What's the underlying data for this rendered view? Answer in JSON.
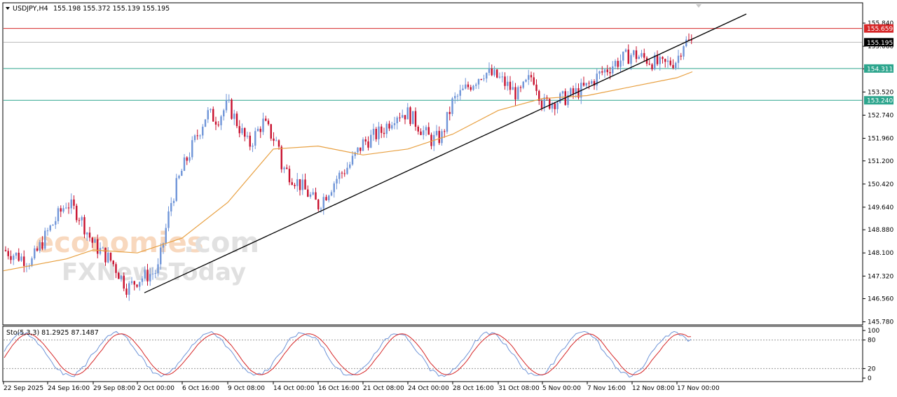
{
  "header": {
    "symbol": "USDJPY,H4",
    "ohlc": "155.198 155.372 155.139 155.195"
  },
  "indicator": {
    "label": "Sto(5,3,3) 81.2925 87.1487",
    "levels": [
      "100",
      "80",
      "20",
      "0"
    ]
  },
  "watermark": {
    "line1": "economies",
    "line1b": ".com",
    "line2": "FXNewsToday"
  },
  "colors": {
    "bull": "#6f95d8",
    "bear": "#c8102e",
    "ma": "#e8a041",
    "resistance": "#d62728",
    "support": "#2ca58d",
    "trendline": "#000000",
    "stoch_main": "#6f95d8",
    "stoch_signal": "#d62728"
  },
  "chart_data": {
    "type": "candlestick",
    "timeframe": "H4",
    "y_ticks": [
      "155.840",
      "155.060",
      "154.300",
      "153.520",
      "152.740",
      "151.960",
      "151.200",
      "150.420",
      "149.640",
      "148.880",
      "148.100",
      "147.320",
      "146.560",
      "145.780"
    ],
    "x_ticks": [
      "22 Sep 2025",
      "24 Sep 16:00",
      "29 Sep 08:00",
      "2 Oct 00:00",
      "6 Oct 16:00",
      "9 Oct 08:00",
      "14 Oct 00:00",
      "16 Oct 16:00",
      "21 Oct 08:00",
      "24 Oct 00:00",
      "28 Oct 16:00",
      "31 Oct 08:00",
      "5 Nov 00:00",
      "7 Nov 16:00",
      "12 Nov 08:00",
      "17 Nov 00:00"
    ],
    "ylim": [
      145.7,
      156.5
    ],
    "current_price": "155.195",
    "horizontal_levels": [
      {
        "value": 155.659,
        "label": "155.659",
        "color": "#d62728"
      },
      {
        "value": 154.311,
        "label": "154.311",
        "color": "#2ca58d"
      },
      {
        "value": 153.24,
        "label": "153.240",
        "color": "#2ca58d"
      }
    ],
    "trendline": {
      "start": {
        "x": "2 Oct 00:00",
        "y": 146.6
      },
      "end": {
        "x": "18 Nov 04:00",
        "y": 155.3
      }
    },
    "close_path": [
      [
        "22 Sep 2025",
        148.2
      ],
      [
        "24 Sep 00:00",
        147.8
      ],
      [
        "24 Sep 16:00",
        148.8
      ],
      [
        "25 Sep 20:00",
        149.8
      ],
      [
        "26 Sep 20:00",
        149.4
      ],
      [
        "29 Sep 08:00",
        148.4
      ],
      [
        "30 Sep 12:00",
        147.8
      ],
      [
        "1 Oct 04:00",
        146.9
      ],
      [
        "2 Oct 00:00",
        147.2
      ],
      [
        "3 Oct 00:00",
        147.5
      ],
      [
        "6 Oct 00:00",
        149.9
      ],
      [
        "6 Oct 16:00",
        150.9
      ],
      [
        "7 Oct 12:00",
        152.8
      ],
      [
        "8 Oct 12:00",
        152.6
      ],
      [
        "9 Oct 08:00",
        153.1
      ],
      [
        "10 Oct 00:00",
        151.7
      ],
      [
        "10 Oct 16:00",
        152.5
      ],
      [
        "13 Oct 08:00",
        151.7
      ],
      [
        "14 Oct 00:00",
        151.3
      ],
      [
        "15 Oct 04:00",
        150.4
      ],
      [
        "16 Oct 16:00",
        149.7
      ],
      [
        "17 Oct 20:00",
        150.6
      ],
      [
        "20 Oct 12:00",
        151.1
      ],
      [
        "21 Oct 08:00",
        151.8
      ],
      [
        "22 Oct 12:00",
        152.2
      ],
      [
        "23 Oct 12:00",
        152.8
      ],
      [
        "24 Oct 00:00",
        152.8
      ],
      [
        "27 Oct 00:00",
        151.9
      ],
      [
        "28 Oct 00:00",
        152.0
      ],
      [
        "28 Oct 16:00",
        153.2
      ],
      [
        "29 Oct 12:00",
        154.2
      ],
      [
        "30 Oct 12:00",
        154.1
      ],
      [
        "31 Oct 08:00",
        154.0
      ],
      [
        "3 Nov 00:00",
        153.4
      ],
      [
        "4 Nov 00:00",
        154.1
      ],
      [
        "4 Nov 16:00",
        153.6
      ],
      [
        "5 Nov 00:00",
        153.1
      ],
      [
        "6 Nov 00:00",
        153.3
      ],
      [
        "7 Nov 16:00",
        153.7
      ],
      [
        "10 Nov 12:00",
        154.1
      ],
      [
        "11 Nov 12:00",
        154.5
      ],
      [
        "12 Nov 08:00",
        154.8
      ],
      [
        "13 Nov 08:00",
        154.6
      ],
      [
        "14 Nov 04:00",
        154.4
      ],
      [
        "17 Nov 00:00",
        154.6
      ],
      [
        "17 Nov 16:00",
        155.2
      ],
      [
        "18 Nov 04:00",
        155.195
      ]
    ],
    "moving_average": [
      [
        "22 Sep 2025",
        147.5
      ],
      [
        "25 Sep 20:00",
        147.9
      ],
      [
        "29 Sep 08:00",
        148.2
      ],
      [
        "2 Oct 00:00",
        148.1
      ],
      [
        "6 Oct 16:00",
        148.6
      ],
      [
        "9 Oct 08:00",
        149.8
      ],
      [
        "14 Oct 00:00",
        151.6
      ],
      [
        "16 Oct 16:00",
        151.7
      ],
      [
        "21 Oct 08:00",
        151.4
      ],
      [
        "24 Oct 00:00",
        151.6
      ],
      [
        "28 Oct 16:00",
        152.1
      ],
      [
        "31 Oct 08:00",
        152.9
      ],
      [
        "5 Nov 00:00",
        153.3
      ],
      [
        "7 Nov 16:00",
        153.4
      ],
      [
        "12 Nov 08:00",
        153.7
      ],
      [
        "17 Nov 00:00",
        154.0
      ],
      [
        "18 Nov 04:00",
        154.2
      ]
    ],
    "stochastic": {
      "main": 81.2925,
      "signal": 87.1487,
      "levels": [
        80,
        20
      ]
    }
  }
}
